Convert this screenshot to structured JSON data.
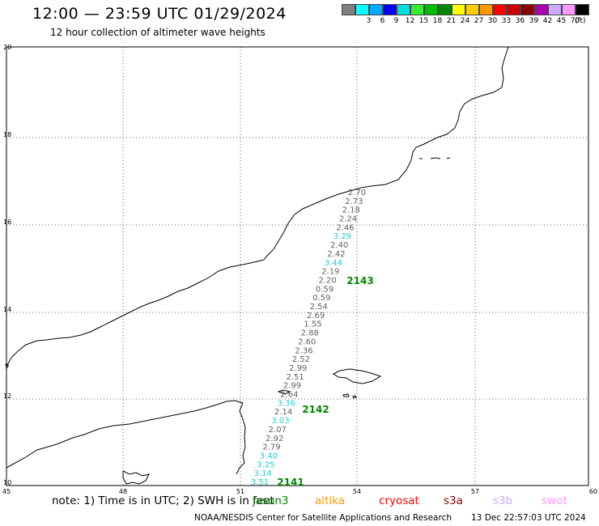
{
  "header": {
    "title": "12:00 — 23:59 UTC 01/29/2024",
    "subtitle": "12 hour collection of altimeter wave heights"
  },
  "legend": {
    "colors": [
      "#808080",
      "#00ffff",
      "#00aaff",
      "#0000ff",
      "#00dddd",
      "#33ee33",
      "#00bb00",
      "#008800",
      "#ffff00",
      "#ffcc00",
      "#ff9900",
      "#ff0000",
      "#cc0000",
      "#880000",
      "#aa00aa",
      "#ccaaff",
      "#ff99ff",
      "#000000"
    ],
    "labels": [
      "3",
      "6",
      "9",
      "12",
      "15",
      "18",
      "21",
      "24",
      "27",
      "30",
      "33",
      "36",
      "39",
      "42",
      "45",
      "70"
    ],
    "unit": "(ft)"
  },
  "axes": {
    "lat_labels": [
      "20",
      "18",
      "16",
      "14",
      "12",
      "10"
    ],
    "lon_labels": [
      "45",
      "48",
      "51",
      "54",
      "57",
      "60"
    ],
    "edge_label": "9"
  },
  "track": {
    "color_gray": "#606060",
    "color_cyan": "#22cccc",
    "readings": [
      {
        "v": "2.70",
        "c": "gray"
      },
      {
        "v": "2.73",
        "c": "gray"
      },
      {
        "v": "2.18",
        "c": "gray"
      },
      {
        "v": "2.24",
        "c": "gray"
      },
      {
        "v": "2.46",
        "c": "gray"
      },
      {
        "v": "3.29",
        "c": "cyan"
      },
      {
        "v": "2.40",
        "c": "gray"
      },
      {
        "v": "2.42",
        "c": "gray"
      },
      {
        "v": "3.44",
        "c": "cyan"
      },
      {
        "v": "2.19",
        "c": "gray"
      },
      {
        "v": "2.20",
        "c": "gray"
      },
      {
        "v": "0.59",
        "c": "gray"
      },
      {
        "v": "0.59",
        "c": "gray"
      },
      {
        "v": "2.54",
        "c": "gray"
      },
      {
        "v": "2.69",
        "c": "gray"
      },
      {
        "v": "1.55",
        "c": "gray"
      },
      {
        "v": "2.88",
        "c": "gray"
      },
      {
        "v": "2.60",
        "c": "gray"
      },
      {
        "v": "2.36",
        "c": "gray"
      },
      {
        "v": "2.52",
        "c": "gray"
      },
      {
        "v": "2.99",
        "c": "gray"
      },
      {
        "v": "2.51",
        "c": "gray"
      },
      {
        "v": "2.99",
        "c": "gray"
      },
      {
        "v": "2.64",
        "c": "gray"
      },
      {
        "v": "3.36",
        "c": "cyan"
      },
      {
        "v": "2.14",
        "c": "gray"
      },
      {
        "v": "3.03",
        "c": "cyan"
      },
      {
        "v": "2.07",
        "c": "gray"
      },
      {
        "v": "2.92",
        "c": "gray"
      },
      {
        "v": "2.79",
        "c": "gray"
      },
      {
        "v": "3.40",
        "c": "cyan"
      },
      {
        "v": "3.25",
        "c": "cyan"
      },
      {
        "v": "3.14",
        "c": "cyan"
      },
      {
        "v": "3.51",
        "c": "cyan"
      }
    ],
    "times": [
      {
        "v": "2143",
        "color": "#008800"
      },
      {
        "v": "2142",
        "color": "#008800"
      },
      {
        "v": "2141",
        "color": "#008800"
      }
    ]
  },
  "footer": {
    "note": "note: 1) Time is in UTC; 2) SWH is in feet",
    "satellites": [
      {
        "name": "jason3",
        "color": "#008800"
      },
      {
        "name": "altika",
        "color": "#ff9900"
      },
      {
        "name": "cryosat",
        "color": "#ff0000"
      },
      {
        "name": "s3a",
        "color": "#880000"
      },
      {
        "name": "s3b",
        "color": "#ccaaff"
      },
      {
        "name": "swot",
        "color": "#ff99ff"
      }
    ],
    "org": "NOAA/NESDIS Center for Satellite Applications and Research",
    "timestamp": "13 Dec 22:57:03 UTC 2024"
  }
}
